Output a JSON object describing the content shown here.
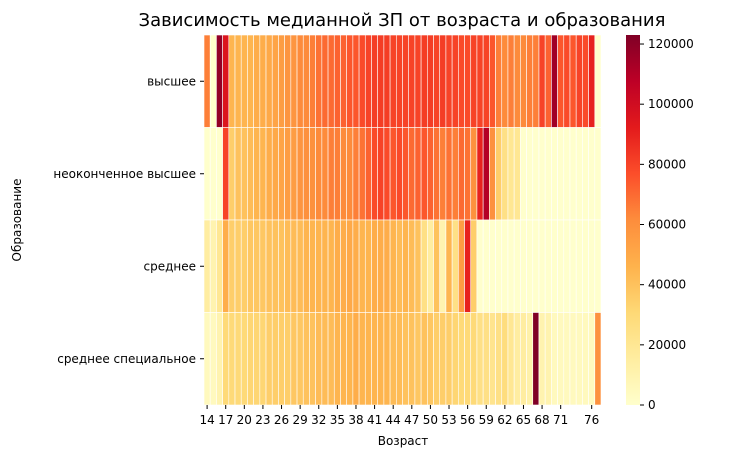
{
  "chart_data": {
    "type": "heatmap",
    "title": "Зависимость медианной ЗП от возраста и образования",
    "xlabel": "Возраст",
    "ylabel": "Образование",
    "rows": [
      "высшее",
      "неоконченное высшее",
      "среднее",
      "среднее специальное"
    ],
    "x_tick_labels": [
      "14",
      "17",
      "20",
      "23",
      "26",
      "29",
      "32",
      "35",
      "38",
      "41",
      "44",
      "47",
      "50",
      "53",
      "56",
      "59",
      "62",
      "65",
      "68",
      "71",
      "76"
    ],
    "colorbar": {
      "vmin": 0,
      "vmax": 123000,
      "ticks": [
        "0",
        "20000",
        "40000",
        "60000",
        "80000",
        "100000",
        "120000"
      ],
      "colormap": "YlOrRd"
    },
    "grid": false,
    "cell_lines": true,
    "columns": [
      "14",
      "15",
      "16",
      "17",
      "18",
      "19",
      "20",
      "21",
      "22",
      "23",
      "24",
      "25",
      "26",
      "27",
      "28",
      "29",
      "30",
      "31",
      "32",
      "33",
      "34",
      "35",
      "36",
      "37",
      "38",
      "39",
      "40",
      "41",
      "42",
      "43",
      "44",
      "45",
      "46",
      "47",
      "48",
      "49",
      "50",
      "51",
      "52",
      "53",
      "54",
      "55",
      "56",
      "57",
      "58",
      "59",
      "60",
      "61",
      "62",
      "63",
      "64",
      "65",
      "66",
      "67",
      "68",
      "69",
      "70",
      "71",
      "72",
      "73",
      "74",
      "75",
      "76",
      "77"
    ],
    "values": [
      [
        65000,
        0,
        118000,
        95000,
        45000,
        45000,
        45000,
        45000,
        48000,
        48000,
        50000,
        52000,
        55000,
        58000,
        58000,
        62000,
        62000,
        65000,
        68000,
        70000,
        70000,
        72000,
        72000,
        75000,
        75000,
        78000,
        80000,
        82000,
        82000,
        82000,
        80000,
        80000,
        80000,
        80000,
        80000,
        82000,
        82000,
        80000,
        82000,
        80000,
        80000,
        78000,
        78000,
        80000,
        80000,
        80000,
        75000,
        65000,
        62000,
        65000,
        62000,
        62000,
        65000,
        65000,
        80000,
        72000,
        115000,
        75000,
        78000,
        75000,
        80000,
        78000,
        90000,
        0
      ],
      [
        0,
        0,
        0,
        80000,
        35000,
        40000,
        40000,
        42000,
        45000,
        45000,
        48000,
        50000,
        52000,
        55000,
        55000,
        58000,
        60000,
        60000,
        62000,
        62000,
        65000,
        65000,
        62000,
        62000,
        65000,
        68000,
        72000,
        78000,
        80000,
        78000,
        75000,
        78000,
        75000,
        70000,
        72000,
        75000,
        72000,
        68000,
        65000,
        68000,
        65000,
        70000,
        68000,
        60000,
        90000,
        110000,
        60000,
        35000,
        25000,
        20000,
        20000,
        0,
        0,
        0,
        0,
        0,
        0,
        0,
        0,
        0,
        0,
        0,
        0,
        0
      ],
      [
        15000,
        10000,
        20000,
        48000,
        35000,
        35000,
        35000,
        38000,
        38000,
        38000,
        40000,
        40000,
        40000,
        42000,
        42000,
        42000,
        45000,
        45000,
        45000,
        45000,
        45000,
        48000,
        48000,
        50000,
        48000,
        45000,
        45000,
        48000,
        48000,
        48000,
        45000,
        42000,
        45000,
        42000,
        40000,
        25000,
        15000,
        40000,
        10000,
        45000,
        25000,
        55000,
        90000,
        35000,
        0,
        0,
        0,
        0,
        0,
        0,
        0,
        0,
        0,
        0,
        0,
        0,
        0,
        0,
        0,
        0,
        0,
        0,
        0,
        0
      ],
      [
        5000,
        5000,
        10000,
        30000,
        30000,
        30000,
        30000,
        32000,
        32000,
        32000,
        35000,
        35000,
        35000,
        35000,
        38000,
        38000,
        40000,
        40000,
        42000,
        42000,
        42000,
        45000,
        45000,
        45000,
        48000,
        45000,
        45000,
        45000,
        45000,
        45000,
        42000,
        42000,
        40000,
        40000,
        38000,
        40000,
        38000,
        35000,
        35000,
        35000,
        32000,
        30000,
        30000,
        30000,
        25000,
        25000,
        22000,
        25000,
        28000,
        20000,
        15000,
        15000,
        12000,
        125000,
        10000,
        10000,
        5000,
        5000,
        5000,
        5000,
        5000,
        5000,
        5000,
        60000
      ]
    ]
  }
}
